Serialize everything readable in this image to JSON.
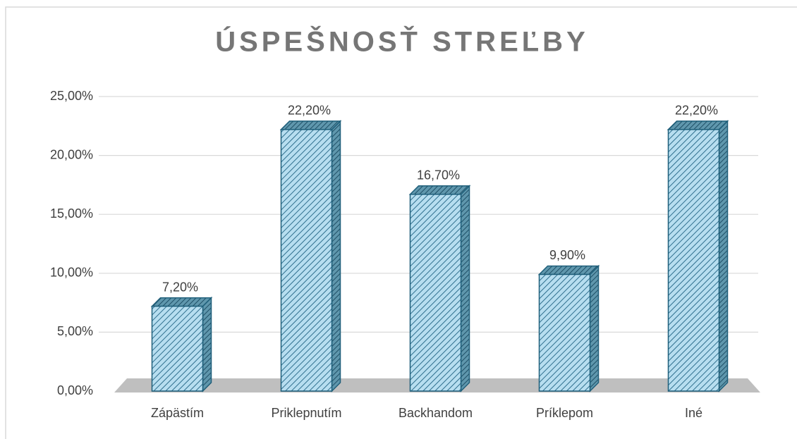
{
  "chart_data": {
    "type": "bar",
    "title": "ÚSPEŠNOSŤ STREĽBY",
    "categories": [
      "Zápästím",
      "Priklepnutím",
      "Backhandom",
      "Príklepom",
      "Iné"
    ],
    "values": [
      7.2,
      22.2,
      16.7,
      9.9,
      22.2
    ],
    "value_labels": [
      "7,20%",
      "22,20%",
      "16,70%",
      "9,90%",
      "22,20%"
    ],
    "color": "#b7def0",
    "ylim": [
      0,
      25
    ],
    "yticks": [
      {
        "value": 0,
        "label": "0,00%"
      },
      {
        "value": 5,
        "label": "5,00%"
      },
      {
        "value": 10,
        "label": "10,00%"
      },
      {
        "value": 15,
        "label": "15,00%"
      },
      {
        "value": 20,
        "label": "20,00%"
      },
      {
        "value": 25,
        "label": "25,00%"
      }
    ],
    "grid": true
  }
}
